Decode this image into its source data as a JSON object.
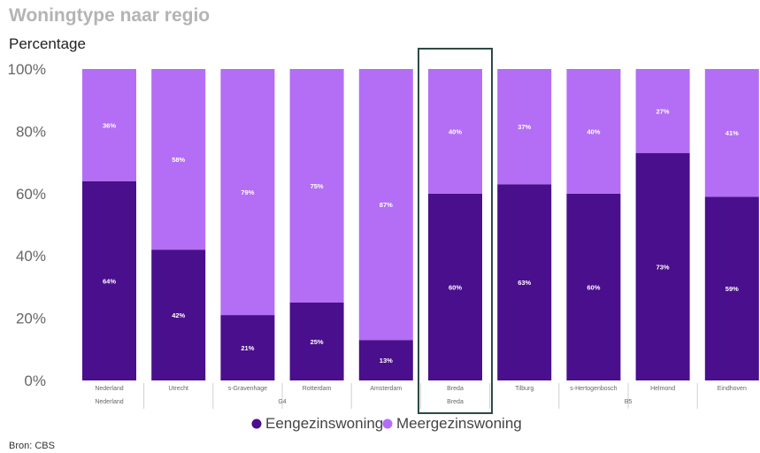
{
  "header": {
    "title": "Woningtype naar regio",
    "subtitle": "Percentage"
  },
  "footer": {
    "source": "Bron: CBS"
  },
  "chart_data": {
    "type": "bar",
    "stacked": true,
    "title": "Woningtype naar regio",
    "ylabel": "Percentage",
    "ylim": [
      0,
      100
    ],
    "yticks": [
      0,
      20,
      40,
      60,
      80,
      100
    ],
    "ytick_labels": [
      "0%",
      "20%",
      "40%",
      "60%",
      "80%",
      "100%"
    ],
    "categories": [
      "Nederland",
      "Utrecht",
      "s-Gravenhage",
      "Rotterdam",
      "Amsterdam",
      "Breda",
      "Tilburg",
      "s-Hertogenbosch",
      "Helmond",
      "Eindhoven"
    ],
    "groups": [
      {
        "label": "Nederland",
        "categories": [
          "Nederland"
        ]
      },
      {
        "label": "G4",
        "categories": [
          "Utrecht",
          "s-Gravenhage",
          "Rotterdam",
          "Amsterdam"
        ]
      },
      {
        "label": "Breda",
        "categories": [
          "Breda"
        ]
      },
      {
        "label": "B5",
        "categories": [
          "Tilburg",
          "s-Hertogenbosch",
          "Helmond",
          "Eindhoven"
        ]
      }
    ],
    "series": [
      {
        "name": "Eengezinswoning",
        "color": "#4a0f8c",
        "values": [
          64,
          42,
          21,
          25,
          13,
          60,
          63,
          60,
          73,
          59
        ]
      },
      {
        "name": "Meergezinswoning",
        "color": "#b36ef5",
        "values": [
          36,
          58,
          79,
          75,
          87,
          40,
          37,
          40,
          27,
          41
        ]
      }
    ],
    "highlighted_category": "Breda",
    "legend_position": "bottom-center",
    "grid": false
  }
}
